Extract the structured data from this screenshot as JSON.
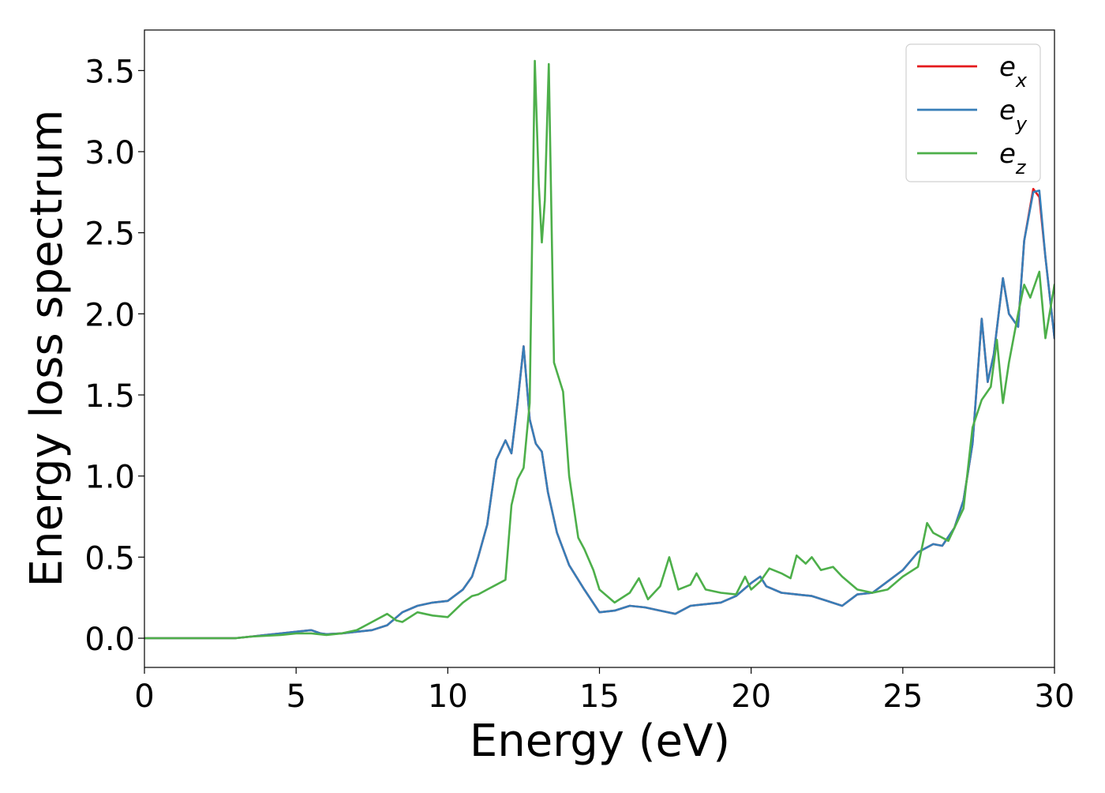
{
  "chart_data": {
    "type": "line",
    "title": "",
    "xlabel": "Energy (eV)",
    "ylabel": "Energy loss spectrum",
    "xlim": [
      0,
      30
    ],
    "ylim": [
      -0.18,
      3.75
    ],
    "grid": false,
    "legend_position": "top-right",
    "x_ticks": [
      0,
      5,
      10,
      15,
      20,
      25,
      30
    ],
    "x_tick_labels": [
      "0",
      "5",
      "10",
      "15",
      "20",
      "25",
      "30"
    ],
    "y_ticks": [
      0.0,
      0.5,
      1.0,
      1.5,
      2.0,
      2.5,
      3.0,
      3.5
    ],
    "y_tick_labels": [
      "0.0",
      "0.5",
      "1.0",
      "1.5",
      "2.0",
      "2.5",
      "3.0",
      "3.5"
    ],
    "series": [
      {
        "name": "e_x",
        "color": "#e41a1c",
        "points": [
          [
            0,
            0
          ],
          [
            3,
            0
          ],
          [
            3.5,
            0.01
          ],
          [
            4,
            0.02
          ],
          [
            4.5,
            0.03
          ],
          [
            5,
            0.04
          ],
          [
            5.5,
            0.05
          ],
          [
            5.8,
            0.03
          ],
          [
            6,
            0.025
          ],
          [
            6.5,
            0.03
          ],
          [
            7,
            0.04
          ],
          [
            7.5,
            0.05
          ],
          [
            8,
            0.08
          ],
          [
            8.5,
            0.16
          ],
          [
            9,
            0.2
          ],
          [
            9.5,
            0.22
          ],
          [
            10,
            0.23
          ],
          [
            10.5,
            0.3
          ],
          [
            10.8,
            0.38
          ],
          [
            11,
            0.5
          ],
          [
            11.3,
            0.7
          ],
          [
            11.6,
            1.1
          ],
          [
            11.9,
            1.22
          ],
          [
            12.1,
            1.14
          ],
          [
            12.3,
            1.45
          ],
          [
            12.5,
            1.8
          ],
          [
            12.7,
            1.35
          ],
          [
            12.9,
            1.2
          ],
          [
            13.1,
            1.15
          ],
          [
            13.3,
            0.9
          ],
          [
            13.6,
            0.65
          ],
          [
            14,
            0.45
          ],
          [
            14.5,
            0.3
          ],
          [
            15,
            0.16
          ],
          [
            15.5,
            0.17
          ],
          [
            16,
            0.2
          ],
          [
            16.5,
            0.19
          ],
          [
            17,
            0.17
          ],
          [
            17.5,
            0.15
          ],
          [
            18,
            0.2
          ],
          [
            18.5,
            0.21
          ],
          [
            19,
            0.22
          ],
          [
            19.5,
            0.26
          ],
          [
            20,
            0.34
          ],
          [
            20.3,
            0.38
          ],
          [
            20.5,
            0.32
          ],
          [
            21,
            0.28
          ],
          [
            21.5,
            0.27
          ],
          [
            22,
            0.26
          ],
          [
            22.5,
            0.23
          ],
          [
            23,
            0.2
          ],
          [
            23.5,
            0.27
          ],
          [
            24,
            0.28
          ],
          [
            24.5,
            0.35
          ],
          [
            25,
            0.42
          ],
          [
            25.5,
            0.53
          ],
          [
            26,
            0.58
          ],
          [
            26.3,
            0.57
          ],
          [
            26.7,
            0.68
          ],
          [
            27,
            0.85
          ],
          [
            27.3,
            1.2
          ],
          [
            27.6,
            1.97
          ],
          [
            27.8,
            1.58
          ],
          [
            28,
            1.75
          ],
          [
            28.3,
            2.22
          ],
          [
            28.5,
            2.0
          ],
          [
            28.8,
            1.92
          ],
          [
            29,
            2.45
          ],
          [
            29.3,
            2.77
          ],
          [
            29.5,
            2.72
          ],
          [
            29.7,
            2.35
          ],
          [
            30,
            1.85
          ]
        ]
      },
      {
        "name": "e_y",
        "color": "#377eb8",
        "points": [
          [
            0,
            0
          ],
          [
            3,
            0
          ],
          [
            3.5,
            0.01
          ],
          [
            4,
            0.02
          ],
          [
            4.5,
            0.03
          ],
          [
            5,
            0.04
          ],
          [
            5.5,
            0.05
          ],
          [
            5.8,
            0.03
          ],
          [
            6,
            0.025
          ],
          [
            6.5,
            0.03
          ],
          [
            7,
            0.04
          ],
          [
            7.5,
            0.05
          ],
          [
            8,
            0.08
          ],
          [
            8.5,
            0.16
          ],
          [
            9,
            0.2
          ],
          [
            9.5,
            0.22
          ],
          [
            10,
            0.23
          ],
          [
            10.5,
            0.3
          ],
          [
            10.8,
            0.38
          ],
          [
            11,
            0.5
          ],
          [
            11.3,
            0.7
          ],
          [
            11.6,
            1.1
          ],
          [
            11.9,
            1.22
          ],
          [
            12.1,
            1.14
          ],
          [
            12.3,
            1.45
          ],
          [
            12.5,
            1.8
          ],
          [
            12.7,
            1.35
          ],
          [
            12.9,
            1.2
          ],
          [
            13.1,
            1.15
          ],
          [
            13.3,
            0.9
          ],
          [
            13.6,
            0.65
          ],
          [
            14,
            0.45
          ],
          [
            14.5,
            0.3
          ],
          [
            15,
            0.16
          ],
          [
            15.5,
            0.17
          ],
          [
            16,
            0.2
          ],
          [
            16.5,
            0.19
          ],
          [
            17,
            0.17
          ],
          [
            17.5,
            0.15
          ],
          [
            18,
            0.2
          ],
          [
            18.5,
            0.21
          ],
          [
            19,
            0.22
          ],
          [
            19.5,
            0.26
          ],
          [
            20,
            0.34
          ],
          [
            20.3,
            0.38
          ],
          [
            20.5,
            0.32
          ],
          [
            21,
            0.28
          ],
          [
            21.5,
            0.27
          ],
          [
            22,
            0.26
          ],
          [
            22.5,
            0.23
          ],
          [
            23,
            0.2
          ],
          [
            23.5,
            0.27
          ],
          [
            24,
            0.28
          ],
          [
            24.5,
            0.35
          ],
          [
            25,
            0.42
          ],
          [
            25.5,
            0.53
          ],
          [
            26,
            0.58
          ],
          [
            26.3,
            0.57
          ],
          [
            26.7,
            0.68
          ],
          [
            27,
            0.85
          ],
          [
            27.3,
            1.2
          ],
          [
            27.6,
            1.97
          ],
          [
            27.8,
            1.58
          ],
          [
            28,
            1.75
          ],
          [
            28.3,
            2.22
          ],
          [
            28.5,
            2.0
          ],
          [
            28.8,
            1.92
          ],
          [
            29,
            2.45
          ],
          [
            29.3,
            2.75
          ],
          [
            29.5,
            2.76
          ],
          [
            29.7,
            2.35
          ],
          [
            30,
            1.85
          ]
        ]
      },
      {
        "name": "e_z",
        "color": "#4daf4a",
        "points": [
          [
            0,
            0
          ],
          [
            3,
            0
          ],
          [
            3.5,
            0.01
          ],
          [
            4,
            0.015
          ],
          [
            4.5,
            0.02
          ],
          [
            5,
            0.03
          ],
          [
            5.5,
            0.03
          ],
          [
            6,
            0.02
          ],
          [
            6.5,
            0.03
          ],
          [
            7,
            0.05
          ],
          [
            7.5,
            0.1
          ],
          [
            8,
            0.15
          ],
          [
            8.3,
            0.11
          ],
          [
            8.5,
            0.1
          ],
          [
            9,
            0.16
          ],
          [
            9.5,
            0.14
          ],
          [
            10,
            0.13
          ],
          [
            10.5,
            0.22
          ],
          [
            10.8,
            0.26
          ],
          [
            11,
            0.27
          ],
          [
            11.3,
            0.3
          ],
          [
            11.6,
            0.33
          ],
          [
            11.9,
            0.36
          ],
          [
            12.1,
            0.82
          ],
          [
            12.3,
            0.98
          ],
          [
            12.5,
            1.05
          ],
          [
            12.7,
            1.45
          ],
          [
            12.87,
            3.56
          ],
          [
            13.0,
            2.8
          ],
          [
            13.1,
            2.44
          ],
          [
            13.2,
            2.7
          ],
          [
            13.33,
            3.54
          ],
          [
            13.5,
            1.7
          ],
          [
            13.8,
            1.52
          ],
          [
            14,
            1.0
          ],
          [
            14.3,
            0.62
          ],
          [
            14.5,
            0.55
          ],
          [
            14.8,
            0.42
          ],
          [
            15,
            0.3
          ],
          [
            15.5,
            0.22
          ],
          [
            16,
            0.28
          ],
          [
            16.3,
            0.37
          ],
          [
            16.6,
            0.24
          ],
          [
            17,
            0.32
          ],
          [
            17.3,
            0.5
          ],
          [
            17.6,
            0.3
          ],
          [
            18,
            0.33
          ],
          [
            18.2,
            0.4
          ],
          [
            18.5,
            0.3
          ],
          [
            19,
            0.28
          ],
          [
            19.5,
            0.27
          ],
          [
            19.8,
            0.38
          ],
          [
            20,
            0.3
          ],
          [
            20.3,
            0.35
          ],
          [
            20.6,
            0.43
          ],
          [
            21,
            0.4
          ],
          [
            21.3,
            0.37
          ],
          [
            21.5,
            0.51
          ],
          [
            21.8,
            0.46
          ],
          [
            22,
            0.5
          ],
          [
            22.3,
            0.42
          ],
          [
            22.7,
            0.44
          ],
          [
            23,
            0.38
          ],
          [
            23.5,
            0.3
          ],
          [
            24,
            0.28
          ],
          [
            24.5,
            0.3
          ],
          [
            25,
            0.38
          ],
          [
            25.5,
            0.44
          ],
          [
            25.8,
            0.71
          ],
          [
            26,
            0.65
          ],
          [
            26.5,
            0.6
          ],
          [
            27,
            0.8
          ],
          [
            27.3,
            1.3
          ],
          [
            27.6,
            1.47
          ],
          [
            27.9,
            1.55
          ],
          [
            28.1,
            1.84
          ],
          [
            28.3,
            1.45
          ],
          [
            28.5,
            1.7
          ],
          [
            28.8,
            2.0
          ],
          [
            29,
            2.18
          ],
          [
            29.2,
            2.1
          ],
          [
            29.5,
            2.26
          ],
          [
            29.7,
            1.85
          ],
          [
            30,
            2.18
          ]
        ]
      }
    ]
  }
}
